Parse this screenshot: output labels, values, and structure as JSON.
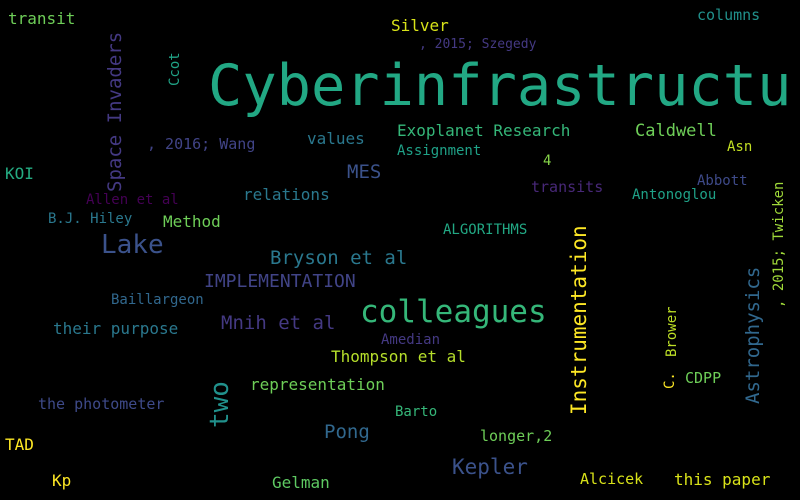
{
  "words": [
    {
      "text": "Cyberinfrastructure",
      "color": "#22a884"
    },
    {
      "text": "colleagues",
      "color": "#35b779"
    },
    {
      "text": "Lake",
      "color": "#3b528b"
    },
    {
      "text": "Kepler",
      "color": "#3b528b"
    },
    {
      "text": "Space Invaders",
      "color": "#443983"
    },
    {
      "text": "Instrumentation",
      "color": "#fde725"
    },
    {
      "text": "Astrophysics",
      "color": "#31688e"
    },
    {
      "text": "two",
      "color": "#21918c"
    },
    {
      "text": "Bryson et al",
      "color": "#2a788e"
    },
    {
      "text": "IMPLEMENTATION",
      "color": "#414487"
    },
    {
      "text": "Mnih et al",
      "color": "#443983"
    },
    {
      "text": "MES",
      "color": "#3b528b"
    },
    {
      "text": "Exoplanet Research",
      "color": "#35b779"
    },
    {
      "text": "Caldwell",
      "color": "#6ece58"
    },
    {
      "text": "Pong",
      "color": "#31688e"
    },
    {
      "text": "Thompson et al",
      "color": "#b5de2b"
    },
    {
      "text": "representation",
      "color": "#6ece58"
    },
    {
      "text": "their purpose",
      "color": "#2a788e"
    },
    {
      "text": "the photometer",
      "color": "#3e4a89"
    },
    {
      "text": "values",
      "color": "#2a788e"
    },
    {
      "text": ", 2016; Wang",
      "color": "#414487"
    },
    {
      "text": "relations",
      "color": "#2a788e"
    },
    {
      "text": "Method",
      "color": "#6ece58"
    },
    {
      "text": "transit",
      "color": "#6ece58"
    },
    {
      "text": "Silver",
      "color": "#d8e219"
    },
    {
      "text": ", 2015; Szegedy",
      "color": "#443983"
    },
    {
      "text": "columns",
      "color": "#21918c"
    },
    {
      "text": "Ccot",
      "color": "#20a386"
    },
    {
      "text": "Assignment",
      "color": "#1fa187"
    },
    {
      "text": "4",
      "color": "#86d549"
    },
    {
      "text": "Asn",
      "color": "#c2df23"
    },
    {
      "text": ", 2015; Twicken",
      "color": "#a0da39"
    },
    {
      "text": "KOI",
      "color": "#25ab82"
    },
    {
      "text": "Allen et al",
      "color": "#440154"
    },
    {
      "text": "transits",
      "color": "#482878"
    },
    {
      "text": "Abbott",
      "color": "#3e4a89"
    },
    {
      "text": "Antonoglou",
      "color": "#1fa187"
    },
    {
      "text": "B.J. Hiley",
      "color": "#2a788e"
    },
    {
      "text": "ALGORITHMS",
      "color": "#22a884"
    },
    {
      "text": "Baillargeon",
      "color": "#31688e"
    },
    {
      "text": "Brower",
      "color": "#bddf26"
    },
    {
      "text": "C.",
      "color": "#fde725"
    },
    {
      "text": "CDPP",
      "color": "#6ece58"
    },
    {
      "text": "Amedian",
      "color": "#443983"
    },
    {
      "text": "Barto",
      "color": "#35b779"
    },
    {
      "text": "longer,2",
      "color": "#6ece58"
    },
    {
      "text": "TAD",
      "color": "#fde725"
    },
    {
      "text": "Kp",
      "color": "#fde725"
    },
    {
      "text": "Gelman",
      "color": "#5ec962"
    },
    {
      "text": "Alcicek",
      "color": "#d8e219"
    },
    {
      "text": "this paper",
      "color": "#d8e219"
    }
  ]
}
